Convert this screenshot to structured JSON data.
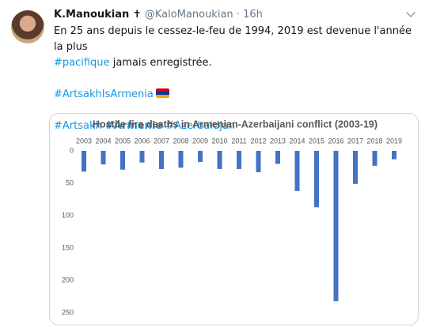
{
  "tweet": {
    "name": "K.Manoukian ✝",
    "handle": "@KaloManoukian",
    "separator": "·",
    "time": "16h",
    "text": {
      "line1": "En 25 ans depuis le cessez-le-feu de 1994, 2019 est devenue l'année la plus",
      "hashtag1": "#pacifique",
      "line2_rest": "jamais enregistrée.",
      "hashtag2": "#ArtsakhIsArmenia",
      "hashtag3": "#Artsakh",
      "hashtag4": "#Armenie",
      "hashtag5": "#Azerbaidjan"
    }
  },
  "chart_data": {
    "type": "bar",
    "title": "Hostile fire deaths in Armenian-Azerbaijani conflict (2003-19)",
    "categories": [
      "2003",
      "2004",
      "2005",
      "2006",
      "2007",
      "2008",
      "2009",
      "2010",
      "2011",
      "2012",
      "2013",
      "2014",
      "2015",
      "2016",
      "2017",
      "2018",
      "2019"
    ],
    "values": [
      32,
      21,
      29,
      18,
      28,
      26,
      17,
      28,
      28,
      33,
      20,
      62,
      87,
      232,
      51,
      23,
      13
    ],
    "color": "#4472c4",
    "ylim": [
      0,
      250
    ],
    "yticks": [
      0,
      50,
      100,
      150,
      200,
      250
    ],
    "y_inverted": true,
    "categories_position": "top",
    "grid": false
  }
}
